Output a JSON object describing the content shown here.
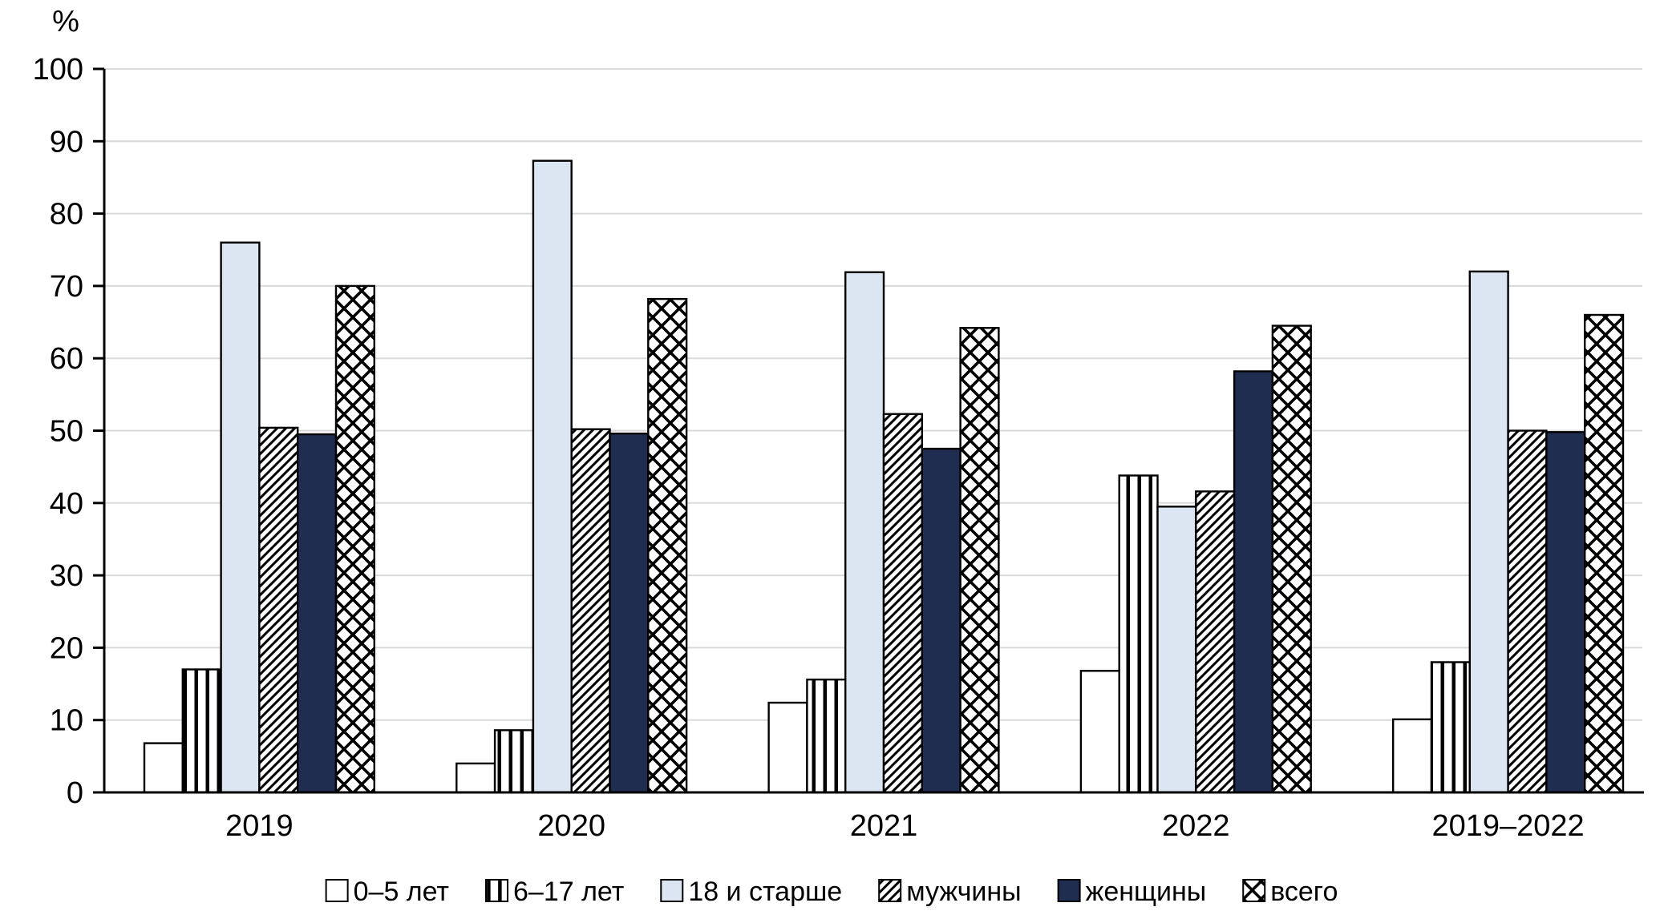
{
  "page": {
    "background": "#ffffff"
  },
  "chart_data": {
    "type": "bar",
    "title": "",
    "unit_label": "%",
    "xlabel": "",
    "ylabel": "%",
    "ylim": [
      0,
      100
    ],
    "ytick_step": 10,
    "yticks": [
      0,
      10,
      20,
      30,
      40,
      50,
      60,
      70,
      80,
      90,
      100
    ],
    "grid": true,
    "legend_position": "bottom",
    "categories": [
      "2019",
      "2020",
      "2021",
      "2022",
      "2019–2022"
    ],
    "series": [
      {
        "name": "0–5 лет",
        "pattern": "plain-white",
        "values": [
          6.8,
          4.0,
          12.4,
          16.8,
          10.1
        ]
      },
      {
        "name": "6–17 лет",
        "pattern": "vertical-stripes",
        "values": [
          17.0,
          8.6,
          15.6,
          43.8,
          18.0
        ]
      },
      {
        "name": "18 и старше",
        "pattern": "solid-lightblue",
        "color": "#DCE6F2",
        "values": [
          76.0,
          87.3,
          71.9,
          39.5,
          72.0
        ]
      },
      {
        "name": "мужчины",
        "pattern": "diagonal-hatch",
        "values": [
          50.4,
          50.2,
          52.3,
          41.6,
          50.0
        ]
      },
      {
        "name": "женщины",
        "pattern": "solid-navy",
        "color": "#1F2D50",
        "values": [
          49.5,
          49.6,
          47.5,
          58.2,
          49.8
        ]
      },
      {
        "name": "всего",
        "pattern": "diamond-crosshatch",
        "values": [
          70.0,
          68.2,
          64.2,
          64.5,
          66.0
        ]
      }
    ],
    "colors": {
      "grid": "#D9D9D9",
      "axis": "#000000",
      "bar_stroke": "#000000",
      "lightblue": "#DCE6F2",
      "navy": "#1F2D50"
    }
  }
}
